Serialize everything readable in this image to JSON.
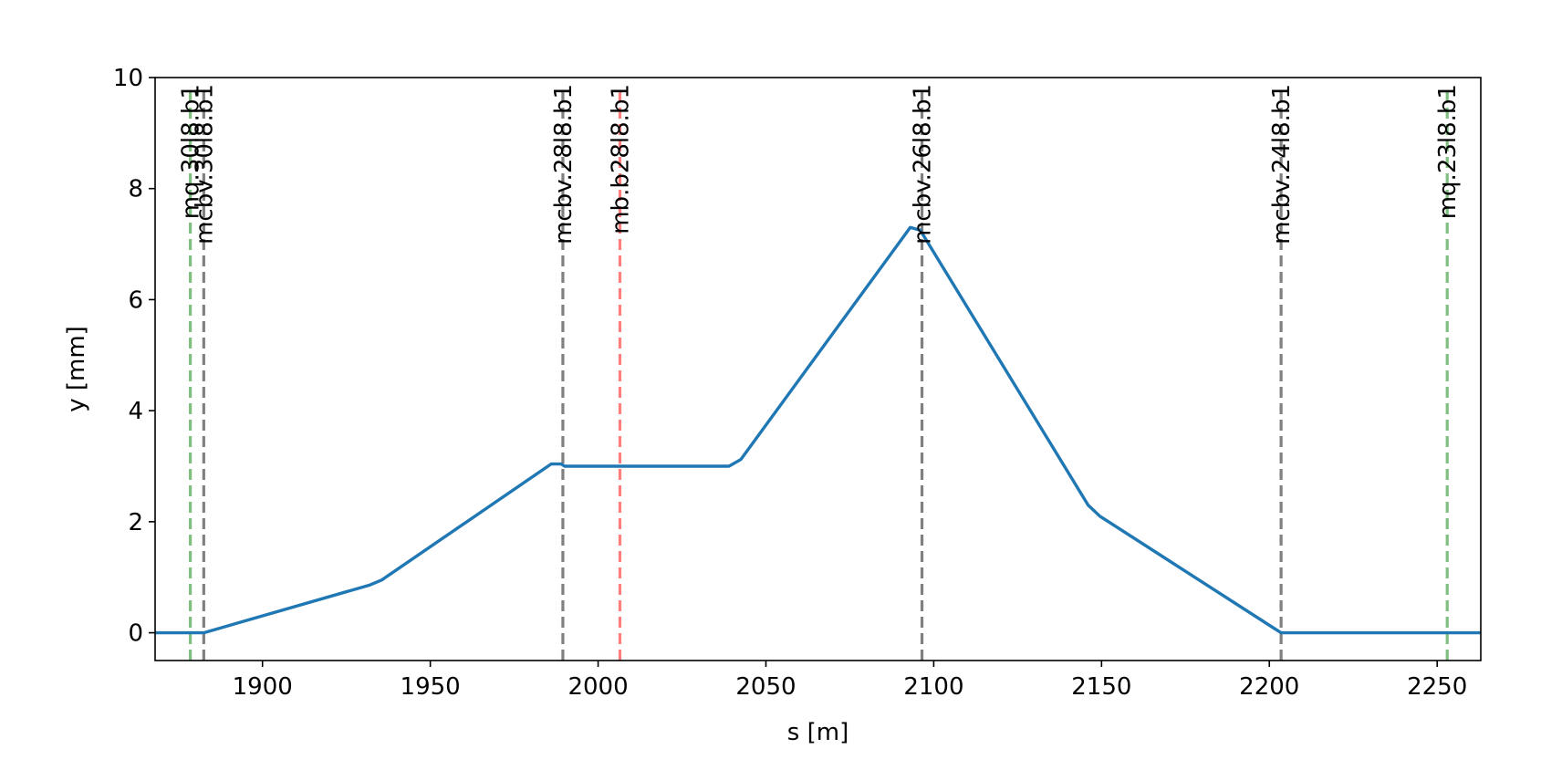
{
  "chart_data": {
    "type": "line",
    "title": "",
    "xlabel": "s [m]",
    "ylabel": "y [mm]",
    "xlim": [
      1868,
      2263
    ],
    "ylim": [
      -0.5,
      10
    ],
    "xticks": [
      1900,
      1950,
      2000,
      2050,
      2100,
      2150,
      2200,
      2250
    ],
    "yticks": [
      0,
      2,
      4,
      6,
      8,
      10
    ],
    "grid": false,
    "series": [
      {
        "color": "#1f77b4",
        "x": [
          1868,
          1882.5,
          1932,
          1935.5,
          1986,
          1989,
          1990,
          2039,
          2042.5,
          2093,
          2096,
          2146,
          2149.5,
          2203.5,
          2263
        ],
        "y": [
          0,
          0,
          0.86,
          0.95,
          3.04,
          3.04,
          3.0,
          3.0,
          3.12,
          7.3,
          7.25,
          2.3,
          2.1,
          0,
          0
        ]
      }
    ],
    "markers": [
      {
        "s": 1878.5,
        "label": "mq.30l8.b1",
        "color": "#7fbf7f"
      },
      {
        "s": 1882.5,
        "label": "mcbv.30l8.b1",
        "color": "#808080"
      },
      {
        "s": 1989.5,
        "label": "mcbv.28l8.b1",
        "color": "#808080"
      },
      {
        "s": 2006.5,
        "label": "mb.b28l8.b1",
        "color": "#ff7f7f"
      },
      {
        "s": 2096.5,
        "label": "mcbv.26l8.b1",
        "color": "#808080"
      },
      {
        "s": 2203.5,
        "label": "mcbv.24l8.b1",
        "color": "#808080"
      },
      {
        "s": 2253,
        "label": "mq.23l8.b1",
        "color": "#7fbf7f"
      }
    ]
  }
}
